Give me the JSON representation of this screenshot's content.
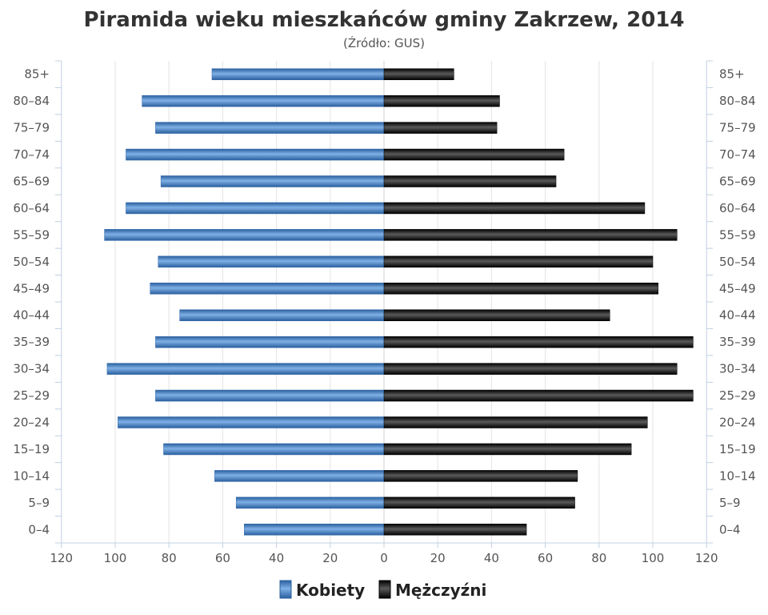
{
  "chart_data": {
    "type": "bar",
    "orientation": "horizontal-pyramid",
    "title": "Piramida wieku mieszkańców gminy Zakrzew, 2014",
    "subtitle": "(Źródło: GUS)",
    "categories": [
      "85+",
      "80–84",
      "75–79",
      "70–74",
      "65–69",
      "60–64",
      "55–59",
      "50–54",
      "45–49",
      "40–44",
      "35–39",
      "30–34",
      "25–29",
      "20–24",
      "15–19",
      "10–14",
      "5–9",
      "0–4"
    ],
    "series": [
      {
        "name": "Kobiety",
        "color": "#3a75b8",
        "side": "left",
        "values": [
          64,
          90,
          85,
          96,
          83,
          96,
          104,
          84,
          87,
          76,
          85,
          103,
          85,
          99,
          82,
          63,
          55,
          52
        ]
      },
      {
        "name": "Mężczyźni",
        "color": "#111111",
        "side": "right",
        "values": [
          26,
          43,
          42,
          67,
          64,
          97,
          109,
          100,
          102,
          84,
          115,
          109,
          115,
          98,
          92,
          72,
          71,
          53
        ]
      }
    ],
    "xlim": [
      -120,
      120
    ],
    "x_ticks": [
      "120",
      "100",
      "80",
      "60",
      "40",
      "20",
      "0",
      "20",
      "40",
      "60",
      "80",
      "100",
      "120"
    ],
    "grid": "vertical",
    "legend": "bottom-center"
  }
}
